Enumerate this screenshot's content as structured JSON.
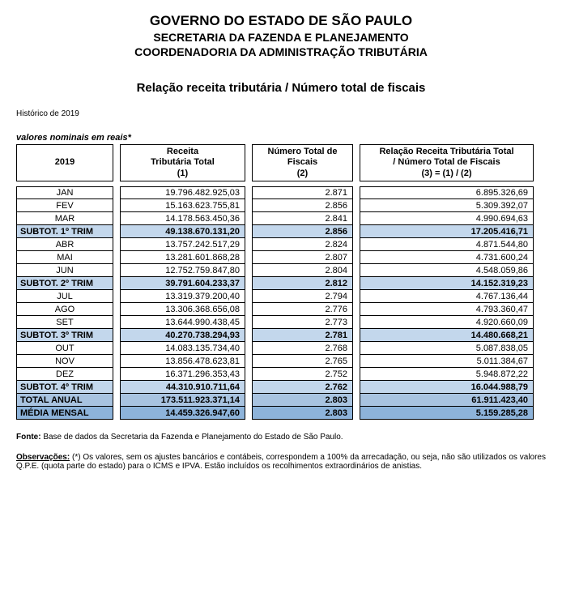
{
  "header": {
    "gov": "GOVERNO DO ESTADO DE SÃO PAULO",
    "secretaria": "SECRETARIA DA FAZENDA E PLANEJAMENTO",
    "coordenadoria": "COORDENADORIA DA ADMINISTRAÇÃO TRIBUTÁRIA"
  },
  "title": "Relação receita tributária / Número total de fiscais",
  "historico": "Histórico de 2019",
  "valores_label": "valores nominais em reais*",
  "col_headers": {
    "c0": "2019",
    "c1a": "Receita",
    "c1b": "Tributária Total",
    "c1c": "(1)",
    "c2a": "Número Total de",
    "c2b": "Fiscais",
    "c2c": "(2)",
    "c3a": "Relação Receita Tributária Total",
    "c3b": "/ Número Total de Fiscais",
    "c3c": "(3) = (1) / (2)"
  },
  "rows": [
    {
      "k": "row",
      "cls": "",
      "label": "JAN",
      "r": "19.796.482.925,03",
      "f": "2.871",
      "rel": "6.895.326,69"
    },
    {
      "k": "row",
      "cls": "",
      "label": "FEV",
      "r": "15.163.623.755,81",
      "f": "2.856",
      "rel": "5.309.392,07"
    },
    {
      "k": "row",
      "cls": "",
      "label": "MAR",
      "r": "14.178.563.450,36",
      "f": "2.841",
      "rel": "4.990.694,63"
    },
    {
      "k": "row",
      "cls": "subtot",
      "label": "SUBTOT. 1º TRIM",
      "r": "49.138.670.131,20",
      "f": "2.856",
      "rel": "17.205.416,71"
    },
    {
      "k": "row",
      "cls": "",
      "label": "ABR",
      "r": "13.757.242.517,29",
      "f": "2.824",
      "rel": "4.871.544,80"
    },
    {
      "k": "row",
      "cls": "",
      "label": "MAI",
      "r": "13.281.601.868,28",
      "f": "2.807",
      "rel": "4.731.600,24"
    },
    {
      "k": "row",
      "cls": "",
      "label": "JUN",
      "r": "12.752.759.847,80",
      "f": "2.804",
      "rel": "4.548.059,86"
    },
    {
      "k": "row",
      "cls": "subtot",
      "label": "SUBTOT. 2º TRIM",
      "r": "39.791.604.233,37",
      "f": "2.812",
      "rel": "14.152.319,23"
    },
    {
      "k": "row",
      "cls": "",
      "label": "JUL",
      "r": "13.319.379.200,40",
      "f": "2.794",
      "rel": "4.767.136,44"
    },
    {
      "k": "row",
      "cls": "",
      "label": "AGO",
      "r": "13.306.368.656,08",
      "f": "2.776",
      "rel": "4.793.360,47"
    },
    {
      "k": "row",
      "cls": "",
      "label": "SET",
      "r": "13.644.990.438,45",
      "f": "2.773",
      "rel": "4.920.660,09"
    },
    {
      "k": "row",
      "cls": "subtot",
      "label": "SUBTOT. 3º TRIM",
      "r": "40.270.738.294,93",
      "f": "2.781",
      "rel": "14.480.668,21"
    },
    {
      "k": "row",
      "cls": "",
      "label": "OUT",
      "r": "14.083.135.734,40",
      "f": "2.768",
      "rel": "5.087.838,05"
    },
    {
      "k": "row",
      "cls": "",
      "label": "NOV",
      "r": "13.856.478.623,81",
      "f": "2.765",
      "rel": "5.011.384,67"
    },
    {
      "k": "row",
      "cls": "",
      "label": "DEZ",
      "r": "16.371.296.353,43",
      "f": "2.752",
      "rel": "5.948.872,22"
    },
    {
      "k": "row",
      "cls": "subtot",
      "label": "SUBTOT. 4º TRIM",
      "r": "44.310.910.711,64",
      "f": "2.762",
      "rel": "16.044.988,79"
    },
    {
      "k": "row",
      "cls": "totalanual",
      "label": "TOTAL ANUAL",
      "r": "173.511.923.371,14",
      "f": "2.803",
      "rel": "61.911.423,40"
    },
    {
      "k": "row",
      "cls": "media",
      "label": "MÉDIA MENSAL",
      "r": "14.459.326.947,60",
      "f": "2.803",
      "rel": "5.159.285,28"
    }
  ],
  "fonte_label": "Fonte:",
  "fonte_text": " Base de dados da Secretaria da Fazenda e Planejamento do Estado de São Paulo.",
  "obs_label": "Observações:",
  "obs_text": " (*) Os valores, sem os ajustes bancários e contábeis, correspondem a 100% da arrecadação, ou seja, não são utilizados os valores Q.P.E. (quota parte do estado) para o ICMS e IPVA. Estão incluídos os recolhimentos extraordinários de anistias.",
  "colors": {
    "subtot": "#c3d7ec",
    "total": "#a8c3e0",
    "media": "#8db3da",
    "border": "#000000",
    "bg": "#ffffff",
    "text": "#000000"
  },
  "fonts": {
    "body": "Arial",
    "gov_size": 17,
    "sec_size": 14,
    "title_size": 15,
    "table_size": 11,
    "small_size": 10
  }
}
